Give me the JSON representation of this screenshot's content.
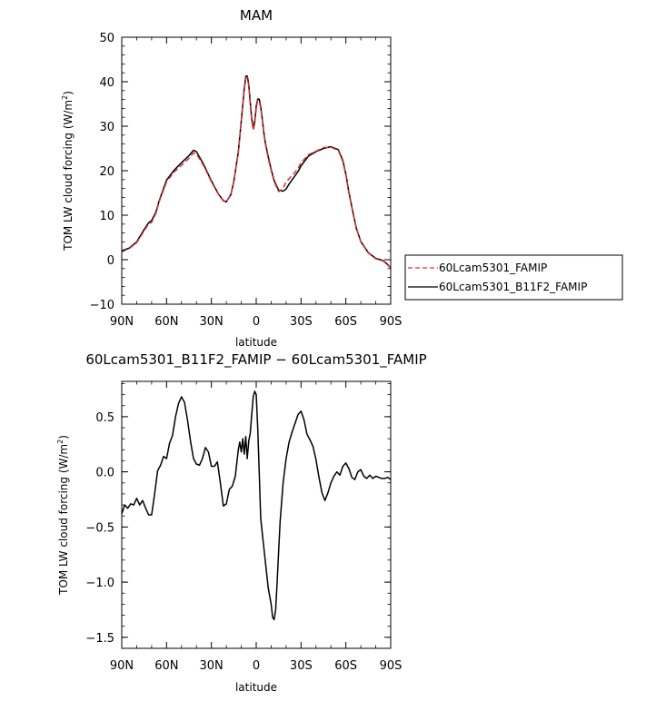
{
  "chart_data": [
    {
      "type": "line",
      "title": "MAM",
      "xlabel": "latitude",
      "ylabel": "TOM LW cloud forcing (W/m",
      "ylabel_sup": "2",
      "ylabel_end": ")",
      "xlim": [
        90,
        -90
      ],
      "ylim": [
        -10,
        50
      ],
      "yticks": [
        50,
        40,
        30,
        20,
        10,
        0,
        -10
      ],
      "ytick_labels": [
        "50",
        "40",
        "30",
        "20",
        "10",
        "0",
        "−10"
      ],
      "xticks": [
        90,
        60,
        30,
        0,
        -30,
        -60,
        -90
      ],
      "xtick_labels": [
        "90N",
        "60N",
        "30N",
        "0",
        "30S",
        "60S",
        "90S"
      ],
      "grid": false,
      "legend_position": "right",
      "series": [
        {
          "name": "60Lcam5301_FAMIP",
          "color": "#e03030",
          "dash": "dashed",
          "x": [
            90,
            85,
            80,
            75,
            72,
            70,
            67,
            65,
            60,
            55,
            50,
            45,
            42,
            40,
            35,
            30,
            25,
            22,
            20,
            17,
            15,
            12,
            10,
            8,
            7,
            6,
            5,
            4,
            3,
            2,
            1,
            0,
            -1,
            -2,
            -3,
            -4,
            -5,
            -6,
            -8,
            -10,
            -12,
            -15,
            -18,
            -20,
            -22,
            -25,
            -28,
            -30,
            -35,
            -40,
            -45,
            -50,
            -55,
            -58,
            -60,
            -62,
            -65,
            -67,
            -70,
            -75,
            -80,
            -85,
            -88,
            -90
          ],
          "y": [
            1.8,
            2.5,
            3.8,
            6.5,
            8.0,
            8.4,
            10.5,
            13.0,
            17.5,
            19.7,
            21.2,
            22.8,
            24.0,
            23.8,
            21.0,
            17.5,
            14.5,
            13.2,
            13.0,
            14.5,
            17.5,
            24.0,
            31.0,
            38.0,
            40.8,
            41.0,
            39.0,
            35.0,
            31.2,
            29.2,
            30.5,
            34.0,
            35.8,
            35.7,
            34.0,
            31.5,
            28.5,
            26.2,
            22.8,
            20.0,
            17.5,
            15.3,
            16.0,
            17.5,
            18.2,
            19.3,
            20.5,
            21.8,
            23.6,
            24.4,
            25.2,
            25.3,
            24.5,
            22.0,
            19.0,
            15.0,
            10.0,
            7.0,
            4.0,
            1.5,
            0.2,
            -0.3,
            -1.2,
            -1.8
          ]
        },
        {
          "name": "60Lcam5301_B11F2_FAMIP",
          "color": "#000000",
          "dash": "solid",
          "x": [
            90,
            85,
            80,
            75,
            72,
            70,
            67,
            65,
            60,
            55,
            50,
            45,
            42,
            40,
            35,
            30,
            25,
            22,
            20,
            17,
            15,
            12,
            10,
            8,
            7,
            6,
            5,
            4,
            3,
            2,
            1,
            0,
            -1,
            -2,
            -3,
            -4,
            -5,
            -6,
            -8,
            -10,
            -12,
            -15,
            -18,
            -20,
            -22,
            -25,
            -28,
            -30,
            -35,
            -40,
            -45,
            -50,
            -55,
            -58,
            -60,
            -62,
            -65,
            -67,
            -70,
            -75,
            -80,
            -85,
            -88,
            -90
          ],
          "y": [
            2.0,
            2.6,
            4.0,
            6.8,
            8.3,
            8.8,
            10.8,
            13.2,
            17.9,
            20.1,
            21.8,
            23.4,
            24.6,
            24.3,
            21.3,
            17.7,
            14.6,
            13.3,
            13.0,
            14.6,
            17.6,
            24.2,
            31.2,
            38.5,
            41.2,
            41.3,
            39.4,
            35.4,
            31.7,
            29.5,
            31.0,
            34.5,
            36.1,
            36.1,
            34.4,
            31.8,
            28.8,
            26.5,
            23.2,
            20.3,
            17.8,
            15.6,
            15.4,
            15.9,
            17.0,
            18.4,
            19.8,
            21.1,
            23.3,
            24.3,
            25.0,
            25.4,
            24.7,
            22.3,
            19.2,
            15.2,
            10.2,
            7.1,
            4.1,
            1.6,
            0.3,
            -0.2,
            -1.1,
            -1.9
          ]
        }
      ]
    },
    {
      "type": "line",
      "title": "60Lcam5301_B11F2_FAMIP − 60Lcam5301_FAMIP",
      "xlabel": "latitude",
      "ylabel": "TOM LW cloud forcing (W/m",
      "ylabel_sup": "2",
      "ylabel_end": ")",
      "xlim": [
        90,
        -90
      ],
      "ylim": [
        -1.6,
        0.82
      ],
      "yticks": [
        0.5,
        0.0,
        -0.5,
        -1.0,
        -1.5
      ],
      "ytick_labels": [
        "0.5",
        "0.0",
        "−0.5",
        "−1.0",
        "−1.5"
      ],
      "xticks": [
        90,
        60,
        30,
        0,
        -30,
        -60,
        -90
      ],
      "xtick_labels": [
        "90N",
        "60N",
        "30N",
        "0",
        "30S",
        "60S",
        "90S"
      ],
      "grid": false,
      "series": [
        {
          "color": "#000000",
          "dash": "solid",
          "x": [
            90,
            88,
            86,
            84,
            82,
            80,
            78,
            76,
            74,
            72,
            70,
            68,
            66,
            64,
            62,
            60,
            58,
            56,
            54,
            52,
            50,
            48,
            46,
            44,
            42,
            40,
            38,
            36,
            34,
            32,
            30,
            28,
            26,
            24,
            22,
            20,
            18,
            16,
            14,
            12,
            11,
            10,
            9,
            8,
            7,
            6,
            5,
            4,
            3,
            2,
            1,
            0,
            -1,
            -2,
            -3,
            -4,
            -6,
            -8,
            -10,
            -11,
            -12,
            -13,
            -14,
            -15,
            -16,
            -18,
            -20,
            -22,
            -24,
            -26,
            -28,
            -30,
            -32,
            -34,
            -36,
            -38,
            -40,
            -42,
            -44,
            -46,
            -48,
            -50,
            -52,
            -54,
            -56,
            -58,
            -60,
            -62,
            -64,
            -66,
            -68,
            -70,
            -72,
            -74,
            -76,
            -78,
            -80,
            -82,
            -84,
            -86,
            -88,
            -90
          ],
          "y": [
            -0.38,
            -0.3,
            -0.33,
            -0.29,
            -0.3,
            -0.24,
            -0.3,
            -0.26,
            -0.33,
            -0.39,
            -0.39,
            -0.2,
            0.01,
            0.06,
            0.14,
            0.12,
            0.26,
            0.33,
            0.5,
            0.62,
            0.68,
            0.63,
            0.47,
            0.28,
            0.12,
            0.07,
            0.06,
            0.12,
            0.22,
            0.18,
            0.05,
            0.05,
            0.09,
            -0.1,
            -0.31,
            -0.29,
            -0.16,
            -0.13,
            -0.04,
            0.2,
            0.27,
            0.18,
            0.3,
            0.16,
            0.32,
            0.12,
            0.28,
            0.35,
            0.52,
            0.68,
            0.73,
            0.7,
            0.4,
            0.0,
            -0.42,
            -0.55,
            -0.8,
            -1.05,
            -1.2,
            -1.32,
            -1.34,
            -1.25,
            -1.0,
            -0.72,
            -0.45,
            -0.1,
            0.12,
            0.27,
            0.36,
            0.44,
            0.52,
            0.55,
            0.47,
            0.34,
            0.29,
            0.23,
            0.11,
            -0.05,
            -0.19,
            -0.26,
            -0.19,
            -0.1,
            -0.04,
            0.0,
            -0.03,
            0.05,
            0.08,
            0.03,
            -0.05,
            -0.07,
            0.0,
            0.02,
            -0.04,
            -0.06,
            -0.03,
            -0.06,
            -0.04,
            -0.05,
            -0.06,
            -0.06,
            -0.05,
            -0.07
          ]
        }
      ]
    }
  ]
}
